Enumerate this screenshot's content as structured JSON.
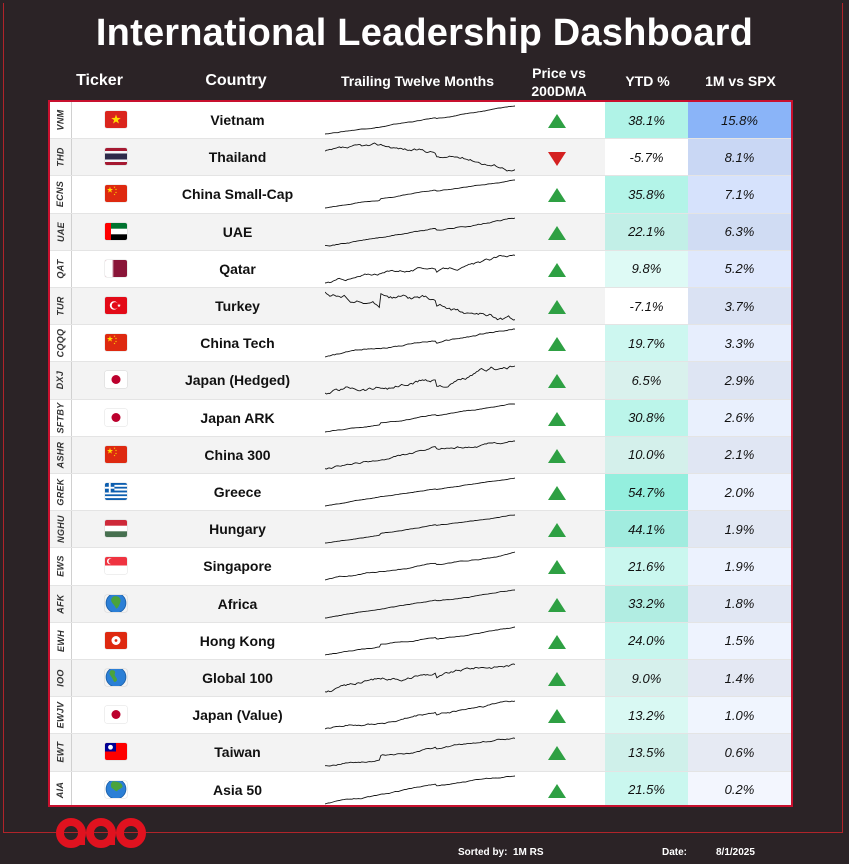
{
  "title": "International Leadership Dashboard",
  "headers": {
    "ticker": "Ticker",
    "country": "Country",
    "ttm": "Trailing Twelve Months",
    "dma_line1": "Price vs",
    "dma_line2": "200DMA",
    "ytd": "YTD %",
    "rs": "1M vs SPX"
  },
  "colors": {
    "accent": "#c8102e",
    "up": "#2ea043",
    "down": "#d42020"
  },
  "rows": [
    {
      "ticker": "VNM",
      "country": "Vietnam",
      "flag": "vietnam-flag",
      "dma": "up",
      "ytd": "38.1%",
      "ytd_val": 38.1,
      "rs": "15.8%",
      "rs_val": 15.8
    },
    {
      "ticker": "THD",
      "country": "Thailand",
      "flag": "thailand-flag",
      "dma": "down",
      "ytd": "-5.7%",
      "ytd_val": -5.7,
      "rs": "8.1%",
      "rs_val": 8.1
    },
    {
      "ticker": "ECNS",
      "country": "China Small-Cap",
      "flag": "china-flag",
      "dma": "up",
      "ytd": "35.8%",
      "ytd_val": 35.8,
      "rs": "7.1%",
      "rs_val": 7.1
    },
    {
      "ticker": "UAE",
      "country": "UAE",
      "flag": "uae-flag",
      "dma": "up",
      "ytd": "22.1%",
      "ytd_val": 22.1,
      "rs": "6.3%",
      "rs_val": 6.3
    },
    {
      "ticker": "QAT",
      "country": "Qatar",
      "flag": "qatar-flag",
      "dma": "up",
      "ytd": "9.8%",
      "ytd_val": 9.8,
      "rs": "5.2%",
      "rs_val": 5.2
    },
    {
      "ticker": "TUR",
      "country": "Turkey",
      "flag": "turkey-flag",
      "dma": "up",
      "ytd": "-7.1%",
      "ytd_val": -7.1,
      "rs": "3.7%",
      "rs_val": 3.7
    },
    {
      "ticker": "CQQQ",
      "country": "China Tech",
      "flag": "china-flag",
      "dma": "up",
      "ytd": "19.7%",
      "ytd_val": 19.7,
      "rs": "3.3%",
      "rs_val": 3.3
    },
    {
      "ticker": "DXJ",
      "country": "Japan (Hedged)",
      "flag": "japan-flag",
      "dma": "up",
      "ytd": "6.5%",
      "ytd_val": 6.5,
      "rs": "2.9%",
      "rs_val": 2.9
    },
    {
      "ticker": "SFTBY",
      "country": "Japan ARK",
      "flag": "japan-flag",
      "dma": "up",
      "ytd": "30.8%",
      "ytd_val": 30.8,
      "rs": "2.6%",
      "rs_val": 2.6
    },
    {
      "ticker": "ASHR",
      "country": "China 300",
      "flag": "china-flag",
      "dma": "up",
      "ytd": "10.0%",
      "ytd_val": 10.0,
      "rs": "2.1%",
      "rs_val": 2.1
    },
    {
      "ticker": "GREK",
      "country": "Greece",
      "flag": "greece-flag",
      "dma": "up",
      "ytd": "54.7%",
      "ytd_val": 54.7,
      "rs": "2.0%",
      "rs_val": 2.0
    },
    {
      "ticker": "NGHU",
      "country": "Hungary",
      "flag": "hungary-flag",
      "dma": "up",
      "ytd": "44.1%",
      "ytd_val": 44.1,
      "rs": "1.9%",
      "rs_val": 1.9
    },
    {
      "ticker": "EWS",
      "country": "Singapore",
      "flag": "singapore-flag",
      "dma": "up",
      "ytd": "21.6%",
      "ytd_val": 21.6,
      "rs": "1.9%",
      "rs_val": 1.9
    },
    {
      "ticker": "AFK",
      "country": "Africa",
      "flag": "globe-africa-icon",
      "dma": "up",
      "ytd": "33.2%",
      "ytd_val": 33.2,
      "rs": "1.8%",
      "rs_val": 1.8
    },
    {
      "ticker": "EWH",
      "country": "Hong Kong",
      "flag": "hongkong-flag",
      "dma": "up",
      "ytd": "24.0%",
      "ytd_val": 24.0,
      "rs": "1.5%",
      "rs_val": 1.5
    },
    {
      "ticker": "IOO",
      "country": "Global 100",
      "flag": "globe-americas-icon",
      "dma": "up",
      "ytd": "9.0%",
      "ytd_val": 9.0,
      "rs": "1.4%",
      "rs_val": 1.4
    },
    {
      "ticker": "EWJV",
      "country": "Japan (Value)",
      "flag": "japan-flag",
      "dma": "up",
      "ytd": "13.2%",
      "ytd_val": 13.2,
      "rs": "1.0%",
      "rs_val": 1.0
    },
    {
      "ticker": "EWT",
      "country": "Taiwan",
      "flag": "taiwan-flag",
      "dma": "up",
      "ytd": "13.5%",
      "ytd_val": 13.5,
      "rs": "0.6%",
      "rs_val": 0.6
    },
    {
      "ticker": "AIA",
      "country": "Asia 50",
      "flag": "globe-asia-icon",
      "dma": "up",
      "ytd": "21.5%",
      "ytd_val": 21.5,
      "rs": "0.2%",
      "rs_val": 0.2
    }
  ],
  "footer": {
    "sorted_label": "Sorted by:",
    "sorted_value": "1M RS",
    "date_label": "Date:",
    "date_value": "8/1/2025"
  }
}
